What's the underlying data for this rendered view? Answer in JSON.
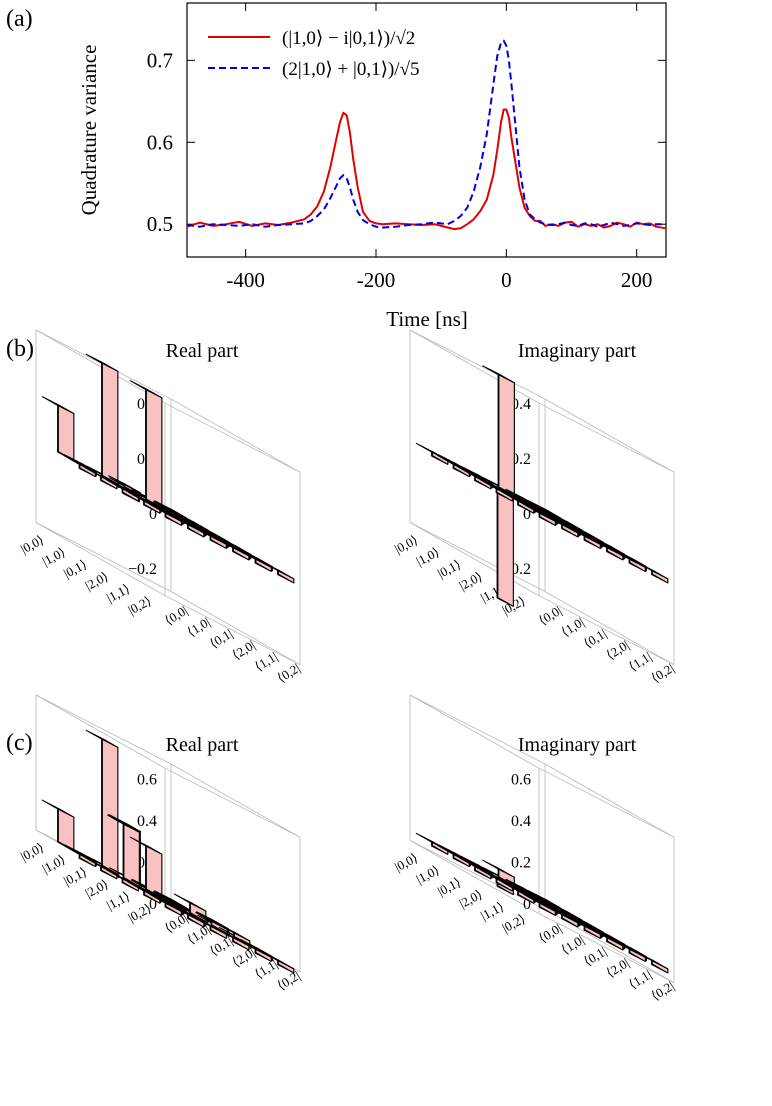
{
  "panel_labels": {
    "a": "(a)",
    "b": "(b)",
    "c": "(c)"
  },
  "chart_data": [
    {
      "type": "line",
      "panel": "(a)",
      "xlabel": "Time [ns]",
      "ylabel": "Quadrature variance",
      "xlim": [
        -490,
        245
      ],
      "ylim": [
        0.46,
        0.77
      ],
      "xticks": [
        -400,
        -200,
        0,
        200
      ],
      "yticks": [
        0.5,
        0.6,
        0.7
      ],
      "legend_position": "top-left",
      "series": [
        {
          "name": "(|1,0⟩ − i|0,1⟩)/√2",
          "color": "#e00000",
          "dash": "solid",
          "x": [
            -490,
            -470,
            -450,
            -430,
            -410,
            -390,
            -370,
            -350,
            -330,
            -310,
            -300,
            -290,
            -280,
            -270,
            -262,
            -255,
            -250,
            -245,
            -240,
            -235,
            -228,
            -220,
            -210,
            -200,
            -190,
            -170,
            -150,
            -130,
            -110,
            -90,
            -80,
            -70,
            -60,
            -50,
            -40,
            -30,
            -20,
            -14,
            -8,
            -4,
            0,
            4,
            8,
            14,
            20,
            28,
            36,
            44,
            52,
            60,
            70,
            80,
            90,
            100,
            110,
            120,
            130,
            140,
            150,
            160,
            170,
            180,
            190,
            200,
            210,
            220,
            230,
            245
          ],
          "values": [
            0.497,
            0.502,
            0.498,
            0.5,
            0.503,
            0.498,
            0.501,
            0.499,
            0.502,
            0.506,
            0.512,
            0.522,
            0.54,
            0.57,
            0.6,
            0.625,
            0.636,
            0.633,
            0.612,
            0.58,
            0.545,
            0.515,
            0.504,
            0.501,
            0.5,
            0.501,
            0.5,
            0.499,
            0.5,
            0.496,
            0.494,
            0.495,
            0.5,
            0.506,
            0.516,
            0.53,
            0.56,
            0.59,
            0.625,
            0.64,
            0.64,
            0.63,
            0.605,
            0.575,
            0.545,
            0.52,
            0.51,
            0.504,
            0.504,
            0.498,
            0.5,
            0.498,
            0.502,
            0.503,
            0.497,
            0.5,
            0.498,
            0.5,
            0.496,
            0.498,
            0.502,
            0.5,
            0.497,
            0.502,
            0.5,
            0.501,
            0.497,
            0.495
          ]
        },
        {
          "name": "(2|1,0⟩ + |0,1⟩)/√5",
          "color": "#0000dd",
          "dash": "dashed",
          "x": [
            -490,
            -470,
            -450,
            -430,
            -410,
            -390,
            -370,
            -350,
            -330,
            -310,
            -300,
            -290,
            -280,
            -270,
            -262,
            -255,
            -250,
            -245,
            -240,
            -235,
            -228,
            -220,
            -210,
            -200,
            -190,
            -170,
            -150,
            -130,
            -110,
            -90,
            -80,
            -70,
            -60,
            -50,
            -40,
            -30,
            -20,
            -14,
            -8,
            -4,
            0,
            4,
            8,
            14,
            20,
            28,
            36,
            44,
            52,
            60,
            70,
            80,
            90,
            100,
            110,
            120,
            130,
            140,
            150,
            160,
            170,
            180,
            190,
            200,
            210,
            220,
            230,
            245
          ],
          "values": [
            0.499,
            0.497,
            0.5,
            0.499,
            0.498,
            0.5,
            0.497,
            0.499,
            0.5,
            0.501,
            0.504,
            0.51,
            0.518,
            0.532,
            0.545,
            0.556,
            0.56,
            0.556,
            0.545,
            0.53,
            0.515,
            0.505,
            0.5,
            0.497,
            0.496,
            0.497,
            0.499,
            0.5,
            0.502,
            0.5,
            0.504,
            0.51,
            0.52,
            0.54,
            0.57,
            0.61,
            0.67,
            0.705,
            0.722,
            0.724,
            0.718,
            0.7,
            0.67,
            0.62,
            0.57,
            0.53,
            0.512,
            0.506,
            0.502,
            0.5,
            0.499,
            0.5,
            0.502,
            0.499,
            0.498,
            0.501,
            0.5,
            0.497,
            0.499,
            0.502,
            0.5,
            0.498,
            0.499,
            0.501,
            0.5,
            0.499,
            0.5,
            0.5
          ]
        }
      ]
    },
    {
      "type": "bar3d",
      "panel": "(b)",
      "title": "Real part",
      "zticks": [
        "0.4",
        "0.2",
        "0",
        "−0.2"
      ],
      "zlim": [
        -0.3,
        0.4
      ],
      "row_labels": [
        "|0,0⟩",
        "|1,0⟩",
        "|0,1⟩",
        "|2,0⟩",
        "|1,1⟩",
        "|0,2⟩"
      ],
      "col_labels": [
        "⟨0,0|",
        "⟨1,0|",
        "⟨0,1|",
        "⟨2,0|",
        "⟨1,1|",
        "⟨0,2|"
      ],
      "matrix": [
        [
          0.17,
          0.0,
          0.0,
          0.0,
          0.0,
          0.0
        ],
        [
          0.0,
          0.41,
          0.01,
          0.0,
          0.0,
          0.0
        ],
        [
          0.0,
          -0.02,
          0.4,
          0.0,
          0.0,
          0.0
        ],
        [
          0.0,
          0.0,
          0.0,
          0.0,
          0.0,
          0.0
        ],
        [
          0.0,
          0.0,
          0.0,
          0.0,
          0.0,
          0.0
        ],
        [
          0.0,
          0.0,
          0.0,
          0.0,
          0.0,
          0.0
        ]
      ]
    },
    {
      "type": "bar3d",
      "panel": "(b)",
      "title": "Imaginary part",
      "zticks": [
        "0.4",
        "0.2",
        "0",
        "−0.2"
      ],
      "zlim": [
        -0.3,
        0.4
      ],
      "row_labels": [
        "|0,0⟩",
        "|1,0⟩",
        "|0,1⟩",
        "|2,0⟩",
        "|1,1⟩",
        "|0,2⟩"
      ],
      "col_labels": [
        "⟨0,0|",
        "⟨1,0|",
        "⟨0,1|",
        "⟨2,0|",
        "⟨1,1|",
        "⟨0,2|"
      ],
      "matrix": [
        [
          0.0,
          0.0,
          0.0,
          0.0,
          0.0,
          0.0
        ],
        [
          0.0,
          0.0,
          0.41,
          0.0,
          0.0,
          0.0
        ],
        [
          0.0,
          -0.4,
          0.0,
          0.0,
          0.0,
          0.0
        ],
        [
          0.0,
          0.0,
          0.0,
          0.0,
          0.0,
          0.0
        ],
        [
          0.0,
          0.0,
          0.0,
          0.0,
          0.0,
          0.0
        ],
        [
          0.0,
          0.0,
          0.0,
          0.0,
          0.0,
          0.0
        ]
      ]
    },
    {
      "type": "bar3d",
      "panel": "(c)",
      "title": "Real part",
      "zticks": [
        "0.6",
        "0.4",
        "0.2",
        "0"
      ],
      "zlim": [
        0,
        0.65
      ],
      "row_labels": [
        "|0,0⟩",
        "|1,0⟩",
        "|0,1⟩",
        "|2,0⟩",
        "|1,1⟩",
        "|0,2⟩"
      ],
      "col_labels": [
        "⟨0,0|",
        "⟨1,0|",
        "⟨0,1|",
        "⟨2,0|",
        "⟨1,1|",
        "⟨0,2|"
      ],
      "matrix": [
        [
          0.16,
          0.0,
          0.0,
          0.0,
          0.0,
          0.0
        ],
        [
          0.0,
          0.61,
          0.26,
          0.0,
          0.0,
          0.0
        ],
        [
          0.0,
          0.26,
          0.21,
          0.0,
          0.0,
          0.0
        ],
        [
          0.0,
          0.0,
          0.0,
          0.05,
          0.02,
          0.0
        ],
        [
          0.0,
          0.0,
          0.0,
          0.02,
          0.02,
          0.0
        ],
        [
          0.0,
          0.0,
          0.0,
          0.0,
          0.0,
          0.0
        ]
      ]
    },
    {
      "type": "bar3d",
      "panel": "(c)",
      "title": "Imaginary part",
      "zticks": [
        "0.6",
        "0.4",
        "0.2",
        "0"
      ],
      "zlim": [
        -0.05,
        0.65
      ],
      "row_labels": [
        "|0,0⟩",
        "|1,0⟩",
        "|0,1⟩",
        "|2,0⟩",
        "|1,1⟩",
        "|0,2⟩"
      ],
      "col_labels": [
        "⟨0,0|",
        "⟨1,0|",
        "⟨0,1|",
        "⟨2,0|",
        "⟨1,1|",
        "⟨0,2|"
      ],
      "matrix": [
        [
          0.0,
          0.0,
          0.0,
          0.0,
          0.0,
          0.0
        ],
        [
          0.0,
          0.0,
          0.04,
          0.0,
          0.0,
          0.0
        ],
        [
          0.0,
          -0.04,
          0.0,
          0.0,
          0.0,
          0.0
        ],
        [
          0.0,
          0.0,
          0.0,
          0.0,
          0.0,
          0.0
        ],
        [
          0.0,
          0.0,
          0.0,
          0.0,
          0.0,
          0.0
        ],
        [
          0.0,
          0.0,
          0.0,
          0.0,
          0.0,
          0.0
        ]
      ]
    }
  ],
  "colors": {
    "bar_top": "#a9d8f5",
    "bar_left": "#9b8fd4",
    "bar_right": "#f9c2c2",
    "box_edge": "#b8b8b8"
  }
}
